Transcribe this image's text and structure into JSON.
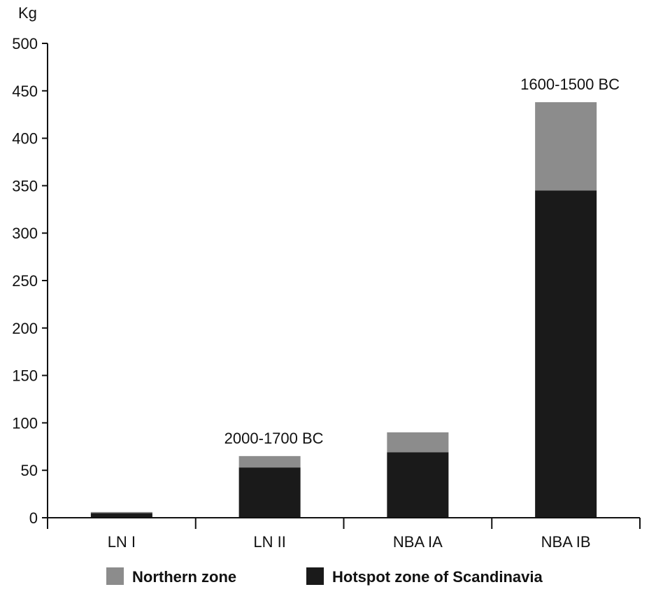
{
  "chart_data": {
    "type": "bar",
    "stacked": true,
    "title": "",
    "xlabel": "",
    "ylabel": "Kg",
    "ylim": [
      0,
      500
    ],
    "yticks": [
      0,
      50,
      100,
      150,
      200,
      250,
      300,
      350,
      400,
      450,
      500
    ],
    "grid": false,
    "legend_position": "bottom",
    "categories": [
      "LN I",
      "LN II",
      "NBA IA",
      "NBA IB"
    ],
    "series": [
      {
        "name": "Hotspot zone of Scandinavia",
        "color": "#1a1a1a",
        "values": [
          5,
          53,
          69,
          345
        ]
      },
      {
        "name": "Northern zone",
        "color": "#8c8c8c",
        "values": [
          1,
          12,
          21,
          93
        ]
      }
    ],
    "annotations": [
      {
        "category": "LN II",
        "text": "2000-1700 BC"
      },
      {
        "category": "NBA IB",
        "text": "1600-1500 BC"
      }
    ],
    "legend_order": [
      "Northern zone",
      "Hotspot zone of Scandinavia"
    ]
  }
}
